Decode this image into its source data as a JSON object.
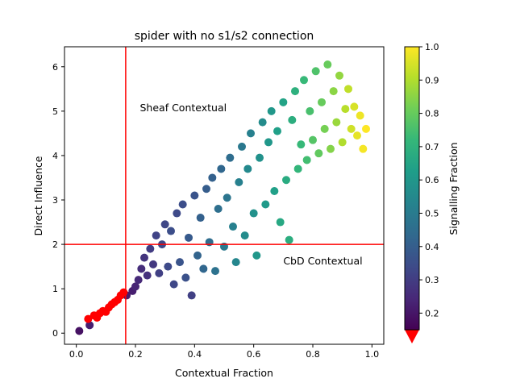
{
  "chart_data": {
    "type": "scatter",
    "title": "spider with no s1/s2 connection",
    "xlabel": "Contextual Fraction",
    "ylabel": "Direct Influence",
    "xlim": [
      -0.04,
      1.04
    ],
    "ylim": [
      -0.25,
      6.45
    ],
    "xticks": [
      0.0,
      0.2,
      0.4,
      0.6,
      0.8,
      1.0
    ],
    "yticks": [
      0,
      1,
      2,
      3,
      4,
      5,
      6
    ],
    "xtick_labels": [
      "0.0",
      "0.2",
      "0.4",
      "0.6",
      "0.8",
      "1.0"
    ],
    "ytick_labels": [
      "0",
      "1",
      "2",
      "3",
      "4",
      "5",
      "6"
    ],
    "grid": false,
    "reference_lines": {
      "vertical_x": 0.167,
      "horizontal_y": 2.0,
      "color": "#ff0000"
    },
    "annotations": [
      {
        "text": "Sheaf Contextual",
        "x": 0.215,
        "y": 5.0
      },
      {
        "text": "CbD Contextual",
        "x": 0.7,
        "y": 1.55
      }
    ],
    "colorbar": {
      "label": "Signalling Fraction",
      "colormap": "viridis",
      "range": [
        0.15,
        1.0
      ],
      "ticks": [
        0.2,
        0.3,
        0.4,
        0.5,
        0.6,
        0.7,
        0.8,
        0.9,
        1.0
      ],
      "tick_labels": [
        "0.2",
        "0.3",
        "0.4",
        "0.5",
        "0.6",
        "0.7",
        "0.8",
        "0.9",
        "1.0"
      ],
      "under_color": "#ff0000",
      "extend": "min"
    },
    "series": [
      {
        "points": [
          [
            0.01,
            0.05,
            0.19
          ],
          [
            0.045,
            0.18,
            0.22
          ],
          [
            0.17,
            0.85,
            0.21
          ],
          [
            0.19,
            0.95,
            0.22
          ],
          [
            0.2,
            1.05,
            0.24
          ],
          [
            0.21,
            1.2,
            0.25
          ],
          [
            0.22,
            1.45,
            0.26
          ],
          [
            0.23,
            1.7,
            0.28
          ],
          [
            0.24,
            1.3,
            0.27
          ],
          [
            0.25,
            1.9,
            0.3
          ],
          [
            0.26,
            1.55,
            0.29
          ],
          [
            0.27,
            2.2,
            0.32
          ],
          [
            0.28,
            1.35,
            0.31
          ],
          [
            0.29,
            2.0,
            0.33
          ],
          [
            0.3,
            2.45,
            0.33
          ],
          [
            0.31,
            1.5,
            0.34
          ],
          [
            0.32,
            2.3,
            0.35
          ],
          [
            0.33,
            1.1,
            0.33
          ],
          [
            0.34,
            2.7,
            0.34
          ],
          [
            0.35,
            1.6,
            0.37
          ],
          [
            0.36,
            2.9,
            0.35
          ],
          [
            0.37,
            1.25,
            0.36
          ],
          [
            0.38,
            2.15,
            0.39
          ],
          [
            0.39,
            0.85,
            0.31
          ],
          [
            0.4,
            3.1,
            0.37
          ],
          [
            0.41,
            1.75,
            0.42
          ],
          [
            0.42,
            2.6,
            0.41
          ],
          [
            0.43,
            1.45,
            0.43
          ],
          [
            0.44,
            3.25,
            0.4
          ],
          [
            0.45,
            2.05,
            0.45
          ],
          [
            0.46,
            3.5,
            0.41
          ],
          [
            0.47,
            1.4,
            0.47
          ],
          [
            0.48,
            2.8,
            0.46
          ],
          [
            0.49,
            3.7,
            0.43
          ],
          [
            0.5,
            1.95,
            0.49
          ],
          [
            0.51,
            3.05,
            0.48
          ],
          [
            0.52,
            3.95,
            0.45
          ],
          [
            0.53,
            2.4,
            0.52
          ],
          [
            0.54,
            1.6,
            0.54
          ],
          [
            0.55,
            3.4,
            0.52
          ],
          [
            0.56,
            4.2,
            0.49
          ],
          [
            0.57,
            2.2,
            0.56
          ],
          [
            0.58,
            3.7,
            0.55
          ],
          [
            0.59,
            4.5,
            0.52
          ],
          [
            0.6,
            2.7,
            0.58
          ],
          [
            0.61,
            1.75,
            0.6
          ],
          [
            0.62,
            3.95,
            0.58
          ],
          [
            0.63,
            4.75,
            0.56
          ],
          [
            0.64,
            2.9,
            0.61
          ],
          [
            0.65,
            4.3,
            0.6
          ],
          [
            0.66,
            5.0,
            0.6
          ],
          [
            0.67,
            3.2,
            0.63
          ],
          [
            0.68,
            4.55,
            0.63
          ],
          [
            0.69,
            2.5,
            0.66
          ],
          [
            0.7,
            5.2,
            0.64
          ],
          [
            0.71,
            3.45,
            0.67
          ],
          [
            0.72,
            2.1,
            0.68
          ],
          [
            0.73,
            4.8,
            0.68
          ],
          [
            0.74,
            5.45,
            0.69
          ],
          [
            0.75,
            3.7,
            0.71
          ],
          [
            0.76,
            4.25,
            0.72
          ],
          [
            0.77,
            5.7,
            0.72
          ],
          [
            0.78,
            3.9,
            0.74
          ],
          [
            0.79,
            5.0,
            0.75
          ],
          [
            0.8,
            4.35,
            0.77
          ],
          [
            0.81,
            5.9,
            0.76
          ],
          [
            0.82,
            4.05,
            0.79
          ],
          [
            0.83,
            5.2,
            0.8
          ],
          [
            0.84,
            4.6,
            0.82
          ],
          [
            0.85,
            6.05,
            0.8
          ],
          [
            0.86,
            4.15,
            0.84
          ],
          [
            0.87,
            5.45,
            0.85
          ],
          [
            0.88,
            4.75,
            0.87
          ],
          [
            0.89,
            5.8,
            0.86
          ],
          [
            0.9,
            4.3,
            0.9
          ],
          [
            0.91,
            5.05,
            0.91
          ],
          [
            0.92,
            5.5,
            0.92
          ],
          [
            0.93,
            4.6,
            0.94
          ],
          [
            0.94,
            5.1,
            0.95
          ],
          [
            0.95,
            4.45,
            0.97
          ],
          [
            0.96,
            4.9,
            0.98
          ],
          [
            0.97,
            4.15,
            0.99
          ],
          [
            0.98,
            4.6,
            1.0
          ]
        ]
      },
      {
        "under_range": true,
        "points": [
          [
            0.04,
            0.32,
            0.1
          ],
          [
            0.06,
            0.4,
            0.1
          ],
          [
            0.07,
            0.35,
            0.1
          ],
          [
            0.08,
            0.45,
            0.1
          ],
          [
            0.09,
            0.5,
            0.1
          ],
          [
            0.1,
            0.48,
            0.1
          ],
          [
            0.11,
            0.58,
            0.1
          ],
          [
            0.12,
            0.65,
            0.1
          ],
          [
            0.13,
            0.7,
            0.1
          ],
          [
            0.14,
            0.75,
            0.1
          ],
          [
            0.15,
            0.85,
            0.1
          ],
          [
            0.16,
            0.92,
            0.1
          ]
        ]
      }
    ]
  }
}
